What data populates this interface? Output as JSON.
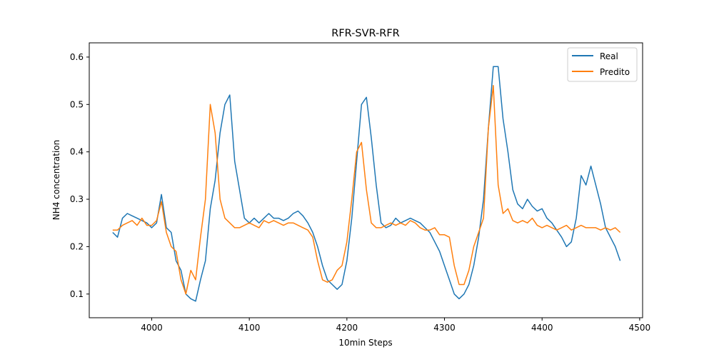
{
  "chart_data": {
    "type": "line",
    "title": "RFR-SVR-RFR",
    "xlabel": "10min Steps",
    "ylabel": "NH4 concentration",
    "xlim": [
      3936,
      4503
    ],
    "ylim": [
      0.05,
      0.63
    ],
    "xticks": [
      4000,
      4100,
      4200,
      4300,
      4400,
      4500
    ],
    "yticks": [
      0.1,
      0.2,
      0.3,
      0.4,
      0.5,
      0.6
    ],
    "xtick_labels": [
      "4000",
      "4100",
      "4200",
      "4300",
      "4400",
      "4500"
    ],
    "ytick_labels": [
      "0.1",
      "0.2",
      "0.3",
      "0.4",
      "0.5",
      "0.6"
    ],
    "grid": false,
    "legend_position": "top-right",
    "x": [
      3960,
      3965,
      3970,
      3975,
      3980,
      3985,
      3990,
      3995,
      4000,
      4005,
      4010,
      4015,
      4020,
      4025,
      4030,
      4035,
      4040,
      4045,
      4050,
      4055,
      4060,
      4065,
      4070,
      4075,
      4080,
      4085,
      4090,
      4095,
      4100,
      4105,
      4110,
      4115,
      4120,
      4125,
      4130,
      4135,
      4140,
      4145,
      4150,
      4155,
      4160,
      4165,
      4170,
      4175,
      4180,
      4185,
      4190,
      4195,
      4200,
      4205,
      4210,
      4215,
      4220,
      4225,
      4230,
      4235,
      4240,
      4245,
      4250,
      4255,
      4260,
      4265,
      4270,
      4275,
      4280,
      4285,
      4290,
      4295,
      4300,
      4305,
      4310,
      4315,
      4320,
      4325,
      4330,
      4335,
      4340,
      4345,
      4350,
      4355,
      4360,
      4365,
      4370,
      4375,
      4380,
      4385,
      4390,
      4395,
      4400,
      4405,
      4410,
      4415,
      4420,
      4425,
      4430,
      4435,
      4440,
      4445,
      4450,
      4455,
      4460,
      4465,
      4470,
      4475,
      4480
    ],
    "series": [
      {
        "name": "Real",
        "color": "#1f77b4",
        "values": [
          0.23,
          0.22,
          0.26,
          0.27,
          0.265,
          0.26,
          0.255,
          0.25,
          0.24,
          0.25,
          0.31,
          0.24,
          0.23,
          0.17,
          0.15,
          0.1,
          0.09,
          0.085,
          0.13,
          0.17,
          0.28,
          0.34,
          0.44,
          0.5,
          0.52,
          0.38,
          0.32,
          0.26,
          0.25,
          0.26,
          0.25,
          0.26,
          0.27,
          0.26,
          0.26,
          0.255,
          0.26,
          0.27,
          0.275,
          0.265,
          0.25,
          0.23,
          0.2,
          0.16,
          0.13,
          0.12,
          0.11,
          0.12,
          0.17,
          0.26,
          0.38,
          0.5,
          0.515,
          0.43,
          0.33,
          0.25,
          0.24,
          0.245,
          0.26,
          0.25,
          0.255,
          0.26,
          0.255,
          0.25,
          0.24,
          0.23,
          0.21,
          0.19,
          0.16,
          0.13,
          0.1,
          0.09,
          0.1,
          0.12,
          0.16,
          0.22,
          0.3,
          0.45,
          0.58,
          0.58,
          0.47,
          0.4,
          0.32,
          0.29,
          0.28,
          0.3,
          0.285,
          0.275,
          0.28,
          0.26,
          0.25,
          0.235,
          0.22,
          0.2,
          0.21,
          0.26,
          0.35,
          0.33,
          0.37,
          0.33,
          0.29,
          0.24,
          0.22,
          0.2,
          0.17
        ]
      },
      {
        "name": "Predito",
        "color": "#ff7f0e",
        "values": [
          0.235,
          0.235,
          0.245,
          0.25,
          0.255,
          0.245,
          0.26,
          0.245,
          0.245,
          0.255,
          0.295,
          0.23,
          0.2,
          0.19,
          0.13,
          0.1,
          0.15,
          0.13,
          0.22,
          0.3,
          0.5,
          0.44,
          0.3,
          0.26,
          0.25,
          0.24,
          0.24,
          0.245,
          0.25,
          0.245,
          0.24,
          0.255,
          0.25,
          0.255,
          0.25,
          0.245,
          0.25,
          0.25,
          0.245,
          0.24,
          0.235,
          0.22,
          0.17,
          0.13,
          0.125,
          0.13,
          0.15,
          0.16,
          0.21,
          0.3,
          0.4,
          0.42,
          0.32,
          0.25,
          0.24,
          0.24,
          0.245,
          0.25,
          0.245,
          0.25,
          0.245,
          0.255,
          0.25,
          0.24,
          0.235,
          0.235,
          0.24,
          0.225,
          0.225,
          0.22,
          0.16,
          0.12,
          0.12,
          0.15,
          0.2,
          0.23,
          0.26,
          0.45,
          0.54,
          0.33,
          0.27,
          0.28,
          0.255,
          0.25,
          0.255,
          0.25,
          0.26,
          0.245,
          0.24,
          0.245,
          0.24,
          0.235,
          0.24,
          0.245,
          0.235,
          0.24,
          0.245,
          0.24,
          0.24,
          0.24,
          0.235,
          0.24,
          0.235,
          0.24,
          0.23
        ]
      }
    ]
  }
}
